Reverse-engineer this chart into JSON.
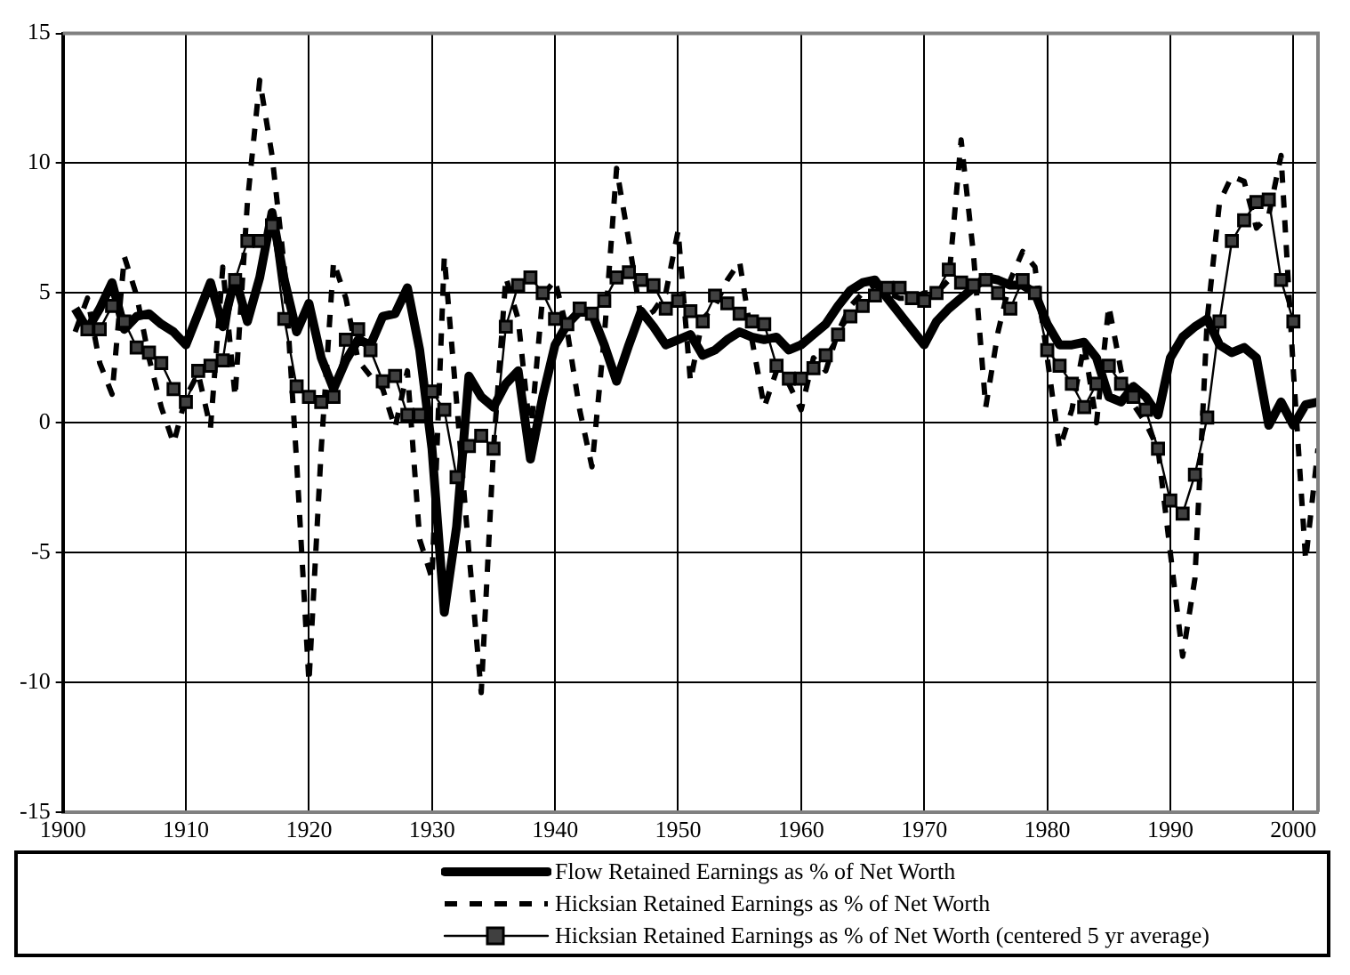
{
  "chart_data": {
    "type": "line",
    "x": [
      1901,
      1902,
      1903,
      1904,
      1905,
      1906,
      1907,
      1908,
      1909,
      1910,
      1911,
      1912,
      1913,
      1914,
      1915,
      1916,
      1917,
      1918,
      1919,
      1920,
      1921,
      1922,
      1923,
      1924,
      1925,
      1926,
      1927,
      1928,
      1929,
      1930,
      1931,
      1932,
      1933,
      1934,
      1935,
      1936,
      1937,
      1938,
      1939,
      1940,
      1941,
      1942,
      1943,
      1944,
      1945,
      1946,
      1947,
      1948,
      1949,
      1950,
      1951,
      1952,
      1953,
      1954,
      1955,
      1956,
      1957,
      1958,
      1959,
      1960,
      1961,
      1962,
      1963,
      1964,
      1965,
      1966,
      1967,
      1968,
      1969,
      1970,
      1971,
      1972,
      1973,
      1974,
      1975,
      1976,
      1977,
      1978,
      1979,
      1980,
      1981,
      1982,
      1983,
      1984,
      1985,
      1986,
      1987,
      1988,
      1989,
      1990,
      1991,
      1992,
      1993,
      1994,
      1995,
      1996,
      1997,
      1998,
      1999,
      2000,
      2001,
      2002
    ],
    "series": [
      {
        "name": "Flow Retained Earnings as % of Net Worth",
        "color": "#000000",
        "line_style": "solid",
        "marker": "none",
        "values": [
          4.4,
          3.6,
          4.4,
          5.4,
          3.6,
          4.1,
          4.2,
          3.8,
          3.5,
          3.0,
          4.2,
          5.4,
          3.7,
          5.6,
          3.9,
          5.6,
          8.1,
          5.5,
          3.5,
          4.6,
          2.5,
          1.3,
          2.4,
          3.2,
          3.0,
          4.1,
          4.2,
          5.2,
          2.8,
          -1.0,
          -7.3,
          -4.0,
          1.8,
          1.0,
          0.6,
          1.5,
          2.0,
          -1.4,
          1.0,
          3.0,
          3.8,
          4.3,
          4.2,
          3.0,
          1.6,
          3.0,
          4.3,
          3.7,
          3.0,
          3.2,
          3.4,
          2.6,
          2.8,
          3.2,
          3.5,
          3.3,
          3.2,
          3.3,
          2.8,
          3.0,
          3.4,
          3.8,
          4.5,
          5.1,
          5.4,
          5.5,
          4.8,
          4.2,
          3.6,
          3.0,
          3.9,
          4.4,
          4.8,
          5.2,
          5.6,
          5.5,
          5.3,
          5.3,
          5.0,
          3.8,
          3.0,
          3.0,
          3.1,
          2.5,
          1.0,
          0.8,
          1.4,
          1.0,
          0.3,
          2.5,
          3.3,
          3.7,
          4.0,
          3.0,
          2.7,
          2.9,
          2.5,
          -0.1,
          0.8,
          -0.1,
          0.7,
          0.8
        ]
      },
      {
        "name": "Hicksian Retained Earnings as % of Net Worth",
        "color": "#000000",
        "line_style": "dashed",
        "marker": "none",
        "values": [
          3.5,
          4.8,
          2.3,
          1.1,
          6.4,
          4.9,
          2.5,
          0.6,
          -0.8,
          1.0,
          1.9,
          -0.2,
          6.0,
          1.0,
          8.5,
          13.2,
          10.3,
          6.0,
          -1.5,
          -10.0,
          -1.0,
          6.2,
          4.8,
          2.4,
          1.8,
          1.3,
          -0.2,
          2.0,
          -4.5,
          -6.0,
          6.4,
          0.8,
          -5.0,
          -10.4,
          -1.0,
          5.6,
          4.0,
          -0.5,
          4.9,
          5.5,
          3.5,
          0.5,
          -1.7,
          3.3,
          9.8,
          7.0,
          4.0,
          4.3,
          5.0,
          7.4,
          1.6,
          4.0,
          4.5,
          5.5,
          6.2,
          3.2,
          0.6,
          2.0,
          1.5,
          0.5,
          2.5,
          2.0,
          3.5,
          4.5,
          5.0,
          5.3,
          5.0,
          4.8,
          4.8,
          5.0,
          5.0,
          5.5,
          10.9,
          6.5,
          0.6,
          3.5,
          5.5,
          6.6,
          6.0,
          2.5,
          -1.0,
          0.5,
          3.0,
          0.0,
          4.5,
          2.0,
          0.7,
          0.0,
          -1.0,
          -5.0,
          -9.0,
          -6.0,
          4.0,
          8.5,
          9.5,
          9.3,
          7.5,
          8.0,
          10.3,
          2.0,
          -5.3,
          -1.0
        ]
      },
      {
        "name": "Hicksian Retained Earnings as % of Net Worth (centered 5 yr average)",
        "color": "#000000",
        "line_style": "solid",
        "marker": "square",
        "values": [
          null,
          3.6,
          3.6,
          4.5,
          3.9,
          2.9,
          2.7,
          2.3,
          1.3,
          0.8,
          2.0,
          2.2,
          2.4,
          5.5,
          7.0,
          7.0,
          7.6,
          4.0,
          1.4,
          1.0,
          0.8,
          1.0,
          3.2,
          3.6,
          2.8,
          1.6,
          1.8,
          0.3,
          0.3,
          1.2,
          0.5,
          -2.1,
          -0.9,
          -0.5,
          -1.0,
          3.7,
          5.3,
          5.6,
          5.0,
          4.0,
          3.8,
          4.4,
          4.2,
          4.7,
          5.6,
          5.8,
          5.5,
          5.3,
          4.4,
          4.7,
          4.3,
          3.9,
          4.9,
          4.6,
          4.2,
          3.9,
          3.8,
          2.2,
          1.7,
          1.7,
          2.1,
          2.6,
          3.4,
          4.1,
          4.5,
          4.9,
          5.2,
          5.2,
          4.8,
          4.7,
          5.0,
          5.9,
          5.4,
          5.3,
          5.5,
          5.0,
          4.4,
          5.5,
          5.0,
          2.8,
          2.2,
          1.5,
          0.6,
          1.5,
          2.2,
          1.5,
          1.0,
          0.5,
          -1.0,
          -3.0,
          -3.5,
          -2.0,
          0.2,
          3.9,
          7.0,
          7.8,
          8.5,
          8.6,
          5.5,
          3.9,
          null,
          null
        ]
      }
    ],
    "xlim": [
      1900,
      2002
    ],
    "xticks": [
      1900,
      1910,
      1920,
      1930,
      1940,
      1950,
      1960,
      1970,
      1980,
      1990,
      2000
    ],
    "ylim": [
      -15,
      15
    ],
    "yticks": [
      -15,
      -10,
      -5,
      0,
      5,
      10,
      15
    ],
    "grid": true,
    "legend": "bottom"
  }
}
